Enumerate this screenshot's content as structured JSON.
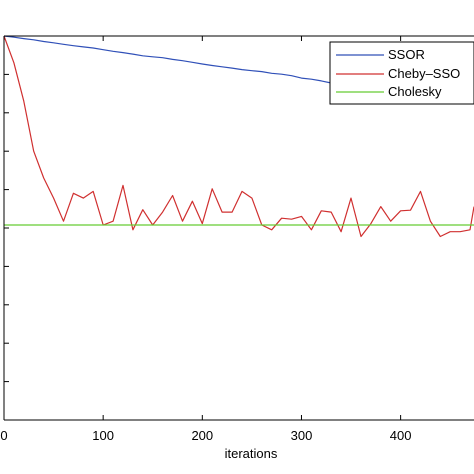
{
  "chart_data": {
    "type": "line",
    "xlabel": "iterations",
    "xlim": [
      0,
      474
    ],
    "x_ticks": [
      0,
      100,
      200,
      300,
      400
    ],
    "x_tick_labels": [
      "0",
      "100",
      "200",
      "300",
      "400"
    ],
    "yscale": "log",
    "ylim": [
      1e-10,
      1
    ],
    "y_ticks": [
      1,
      0.1,
      0.01,
      0.001,
      0.0001,
      1e-05,
      1e-06,
      1e-07,
      1e-08,
      1e-09,
      1e-10
    ],
    "y_tick_labels": [],
    "grid": false,
    "legend": "top-right",
    "series": [
      {
        "name": "SSOR",
        "color": "#3050b8",
        "x": [
          0,
          10,
          20,
          30,
          40,
          50,
          60,
          70,
          80,
          90,
          100,
          110,
          120,
          130,
          140,
          150,
          160,
          170,
          180,
          190,
          200,
          210,
          220,
          230,
          240,
          250,
          260,
          270,
          280,
          290,
          300,
          310,
          320,
          330,
          340,
          350,
          360,
          370,
          380,
          390,
          400,
          410,
          420,
          430,
          440,
          450,
          460,
          470,
          474
        ],
        "y": [
          1,
          0.932,
          0.858,
          0.794,
          0.718,
          0.664,
          0.608,
          0.56,
          0.519,
          0.487,
          0.441,
          0.399,
          0.369,
          0.337,
          0.305,
          0.288,
          0.272,
          0.246,
          0.228,
          0.206,
          0.187,
          0.171,
          0.158,
          0.146,
          0.133,
          0.125,
          0.118,
          0.107,
          0.101,
          0.0924,
          0.0802,
          0.0748,
          0.0677,
          0.0597,
          0.0573,
          0.051,
          0.0462,
          0.0439,
          0.0423,
          0.0374,
          0.0341,
          0.0333,
          0.0322,
          0.0296,
          0.0258,
          0.0228,
          0.0223,
          0.0232,
          0.0235
        ]
      },
      {
        "name": "Cheby–SSO",
        "color": "#d03030",
        "x": [
          0,
          10,
          20,
          30,
          40,
          50,
          60,
          70,
          80,
          90,
          100,
          110,
          120,
          130,
          140,
          150,
          160,
          170,
          180,
          190,
          200,
          210,
          220,
          230,
          240,
          250,
          260,
          270,
          280,
          290,
          300,
          310,
          320,
          330,
          340,
          350,
          360,
          370,
          380,
          390,
          400,
          410,
          420,
          430,
          440,
          450,
          460,
          470,
          474
        ],
        "y": [
          1,
          0.2,
          0.02,
          0.001,
          0.0002,
          6e-05,
          1.5e-05,
          8e-05,
          6e-05,
          9e-05,
          1.2e-05,
          1.5e-05,
          0.000129,
          9e-06,
          3e-05,
          1.2e-05,
          2.6e-05,
          7e-05,
          1.5e-05,
          5e-05,
          1.3e-05,
          0.000105,
          2.6e-05,
          2.6e-05,
          9e-05,
          6e-05,
          1.2e-05,
          9e-06,
          1.8e-05,
          1.7e-05,
          2e-05,
          9e-06,
          2.8e-05,
          2.6e-05,
          8e-06,
          6e-05,
          6e-06,
          1.3e-05,
          3.6e-05,
          1.5e-05,
          2.8e-05,
          2.9e-05,
          9e-05,
          1.5e-05,
          6e-06,
          8e-06,
          8e-06,
          9e-06,
          3.6e-05
        ]
      },
      {
        "name": "Cholesky",
        "color": "#66cc33",
        "x": [
          0,
          474
        ],
        "y": [
          1.2e-05,
          1.2e-05
        ]
      }
    ]
  }
}
